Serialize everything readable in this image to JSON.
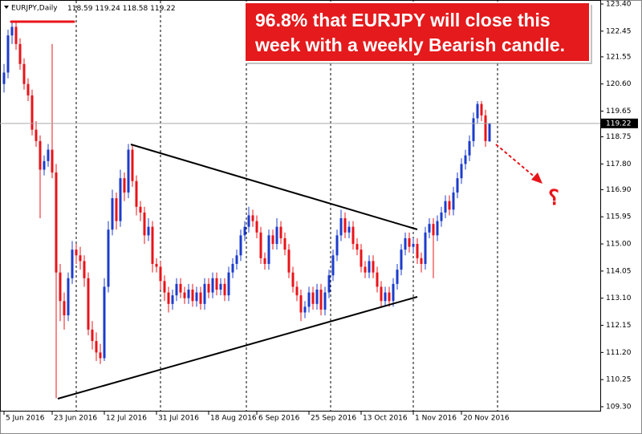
{
  "chart_data": {
    "type": "candlestick",
    "symbol": "EURJPY,Daily",
    "annotation": [
      "96.8% that EURJPY will close this",
      "week with a weekly Bearish candle."
    ],
    "annotation_symbol": "؟",
    "up_color": "#1c3ccc",
    "down_color": "#e8141a",
    "candles": [
      [
        120.6,
        121.3,
        120.3,
        121.0
      ],
      [
        121.0,
        122.5,
        120.8,
        122.3
      ],
      [
        122.3,
        122.8,
        122.0,
        122.6
      ],
      [
        122.6,
        122.8,
        121.8,
        122.0
      ],
      [
        122.0,
        122.2,
        121.1,
        121.3
      ],
      [
        121.3,
        121.5,
        120.4,
        120.6
      ],
      [
        120.6,
        120.8,
        120.0,
        120.2
      ],
      [
        120.2,
        120.4,
        118.8,
        119.0
      ],
      [
        119.0,
        119.3,
        118.4,
        118.6
      ],
      [
        118.6,
        118.8,
        115.9,
        117.6
      ],
      [
        117.6,
        118.1,
        117.4,
        117.9
      ],
      [
        117.9,
        118.5,
        117.7,
        118.3
      ],
      [
        118.3,
        122.0,
        117.3,
        117.5
      ],
      [
        117.5,
        117.8,
        109.6,
        114.0
      ],
      [
        114.0,
        114.3,
        112.3,
        113.0
      ],
      [
        113.0,
        113.3,
        112.0,
        112.5
      ],
      [
        112.5,
        114.0,
        112.3,
        113.8
      ],
      [
        113.8,
        115.1,
        113.6,
        114.8
      ],
      [
        114.8,
        115.0,
        114.3,
        114.6
      ],
      [
        114.6,
        114.9,
        114.1,
        114.4
      ],
      [
        114.4,
        114.6,
        113.5,
        113.8
      ],
      [
        113.8,
        114.0,
        111.8,
        112.0
      ],
      [
        112.0,
        112.3,
        111.3,
        111.6
      ],
      [
        111.6,
        111.9,
        110.9,
        111.2
      ],
      [
        111.2,
        111.5,
        110.8,
        111.0
      ],
      [
        111.0,
        113.8,
        110.9,
        113.5
      ],
      [
        113.5,
        115.8,
        113.3,
        115.5
      ],
      [
        115.5,
        116.9,
        115.3,
        116.6
      ],
      [
        116.6,
        116.8,
        115.5,
        115.8
      ],
      [
        115.8,
        117.6,
        115.6,
        117.3
      ],
      [
        117.3,
        117.5,
        116.5,
        116.8
      ],
      [
        116.8,
        118.5,
        116.6,
        118.3
      ],
      [
        118.3,
        118.5,
        117.0,
        117.2
      ],
      [
        117.2,
        117.4,
        116.0,
        116.3
      ],
      [
        116.3,
        116.5,
        115.8,
        116.1
      ],
      [
        116.1,
        116.3,
        115.0,
        115.3
      ],
      [
        115.3,
        115.9,
        115.1,
        115.6
      ],
      [
        115.6,
        115.8,
        114.0,
        114.3
      ],
      [
        114.3,
        114.5,
        114.0,
        114.2
      ],
      [
        114.2,
        114.4,
        113.4,
        113.7
      ],
      [
        113.7,
        113.9,
        113.0,
        113.3
      ],
      [
        113.3,
        113.5,
        112.6,
        112.9
      ],
      [
        112.9,
        113.4,
        112.7,
        113.2
      ],
      [
        113.2,
        113.8,
        113.0,
        113.6
      ],
      [
        113.6,
        113.8,
        113.1,
        113.3
      ],
      [
        113.3,
        113.5,
        112.9,
        113.1
      ],
      [
        113.1,
        113.6,
        112.9,
        113.4
      ],
      [
        113.4,
        113.6,
        112.8,
        113.0
      ],
      [
        113.0,
        113.5,
        112.8,
        113.3
      ],
      [
        113.3,
        113.5,
        112.7,
        112.9
      ],
      [
        112.9,
        113.8,
        112.7,
        113.6
      ],
      [
        113.6,
        113.8,
        113.1,
        113.3
      ],
      [
        113.3,
        114.0,
        113.1,
        113.8
      ],
      [
        113.8,
        114.0,
        113.2,
        113.4
      ],
      [
        113.4,
        113.8,
        113.2,
        113.6
      ],
      [
        113.6,
        113.8,
        113.0,
        113.2
      ],
      [
        113.2,
        114.2,
        113.0,
        114.0
      ],
      [
        114.0,
        114.5,
        113.8,
        114.3
      ],
      [
        114.3,
        114.8,
        114.1,
        114.6
      ],
      [
        114.6,
        115.5,
        114.4,
        115.3
      ],
      [
        115.3,
        115.8,
        115.1,
        115.6
      ],
      [
        115.6,
        116.3,
        115.4,
        116.0
      ],
      [
        116.0,
        116.2,
        115.6,
        115.8
      ],
      [
        115.8,
        116.0,
        115.2,
        115.4
      ],
      [
        115.4,
        115.6,
        114.3,
        114.5
      ],
      [
        114.5,
        114.7,
        114.1,
        114.3
      ],
      [
        114.3,
        115.5,
        114.1,
        115.3
      ],
      [
        115.3,
        115.5,
        114.8,
        115.0
      ],
      [
        115.0,
        115.9,
        114.8,
        115.6
      ],
      [
        115.6,
        115.8,
        115.0,
        115.2
      ],
      [
        115.2,
        115.4,
        114.6,
        114.8
      ],
      [
        114.8,
        115.0,
        113.8,
        114.0
      ],
      [
        114.0,
        114.2,
        113.3,
        113.5
      ],
      [
        113.5,
        113.7,
        113.0,
        113.2
      ],
      [
        113.2,
        113.4,
        112.3,
        112.6
      ],
      [
        112.6,
        113.0,
        112.4,
        112.8
      ],
      [
        112.8,
        113.5,
        112.6,
        113.3
      ],
      [
        113.3,
        113.5,
        112.7,
        112.9
      ],
      [
        112.9,
        113.6,
        112.7,
        113.4
      ],
      [
        113.4,
        113.6,
        112.5,
        112.7
      ],
      [
        112.7,
        113.5,
        112.5,
        113.3
      ],
      [
        113.3,
        114.1,
        113.1,
        113.9
      ],
      [
        113.9,
        114.8,
        113.7,
        114.6
      ],
      [
        114.6,
        115.5,
        114.4,
        115.3
      ],
      [
        115.3,
        116.2,
        115.1,
        115.9
      ],
      [
        115.9,
        116.1,
        115.2,
        115.4
      ],
      [
        115.4,
        115.8,
        115.2,
        115.6
      ],
      [
        115.6,
        115.8,
        114.8,
        115.0
      ],
      [
        115.0,
        115.2,
        114.6,
        114.8
      ],
      [
        114.8,
        115.0,
        114.0,
        114.2
      ],
      [
        114.2,
        114.4,
        113.8,
        114.0
      ],
      [
        114.0,
        114.6,
        113.8,
        114.4
      ],
      [
        114.4,
        114.6,
        113.8,
        114.0
      ],
      [
        114.0,
        114.2,
        113.3,
        113.5
      ],
      [
        113.5,
        113.7,
        112.8,
        113.0
      ],
      [
        113.0,
        113.5,
        112.8,
        113.3
      ],
      [
        113.3,
        113.5,
        112.8,
        113.0
      ],
      [
        113.0,
        113.8,
        112.8,
        113.6
      ],
      [
        113.6,
        114.3,
        113.4,
        114.1
      ],
      [
        114.1,
        115.0,
        113.9,
        114.8
      ],
      [
        114.8,
        115.4,
        114.6,
        115.2
      ],
      [
        115.2,
        115.4,
        114.7,
        114.9
      ],
      [
        114.9,
        115.2,
        114.7,
        115.0
      ],
      [
        115.0,
        115.2,
        114.3,
        114.5
      ],
      [
        114.5,
        114.7,
        114.0,
        114.3
      ],
      [
        114.3,
        115.6,
        114.1,
        115.4
      ],
      [
        115.4,
        115.9,
        115.2,
        115.7
      ],
      [
        115.7,
        115.9,
        113.8,
        115.3
      ],
      [
        115.3,
        116.0,
        115.1,
        115.8
      ],
      [
        115.8,
        116.3,
        115.6,
        116.1
      ],
      [
        116.1,
        116.7,
        115.9,
        116.5
      ],
      [
        116.5,
        116.7,
        116.0,
        116.2
      ],
      [
        116.2,
        117.0,
        116.0,
        116.8
      ],
      [
        116.8,
        117.5,
        116.6,
        117.3
      ],
      [
        117.3,
        118.0,
        117.1,
        117.8
      ],
      [
        117.8,
        118.3,
        117.6,
        118.1
      ],
      [
        118.1,
        118.8,
        117.9,
        118.6
      ],
      [
        118.6,
        119.6,
        118.4,
        119.4
      ],
      [
        119.4,
        120.0,
        119.2,
        119.9
      ],
      [
        119.9,
        120.0,
        119.3,
        119.5
      ],
      [
        119.5,
        119.7,
        118.4,
        118.6
      ],
      [
        118.59,
        119.24,
        118.58,
        119.22
      ]
    ],
    "xlim": [
      -1,
      148.6
    ],
    "xticks": [
      {
        "value": 0,
        "label": "5 Jun 2016"
      },
      {
        "value": 12,
        "label": "23 Jun 2016"
      },
      {
        "value": 25,
        "label": "12 Jul 2016"
      },
      {
        "value": 38,
        "label": "31 Jul 2016"
      },
      {
        "value": 51,
        "label": "18 Aug 2016"
      },
      {
        "value": 63,
        "label": "6 Sep 2016"
      },
      {
        "value": 76,
        "label": "25 Sep 2016"
      },
      {
        "value": 89,
        "label": "13 Oct 2016"
      },
      {
        "value": 102,
        "label": "1 Nov 2016"
      },
      {
        "value": 114,
        "label": "20 Nov 2016"
      }
    ],
    "ylim": [
      109.3,
      123.4
    ],
    "yticks": [
      {
        "value": 123.4,
        "label": "123.40"
      },
      122.45,
      121.55,
      {
        "value": 120.6,
        "label": "120.60"
      },
      119.65,
      118.75,
      {
        "value": 117.8,
        "label": "117.80"
      },
      {
        "value": 116.9,
        "label": "116.90"
      },
      115.95,
      {
        "value": 115,
        "label": "115.00"
      },
      114.05,
      {
        "value": 113.1,
        "label": "113.10"
      },
      112.15,
      {
        "value": 111.2,
        "label": "111.20"
      },
      110.25,
      {
        "value": 109.3,
        "label": "109.30"
      }
    ]
  }
}
